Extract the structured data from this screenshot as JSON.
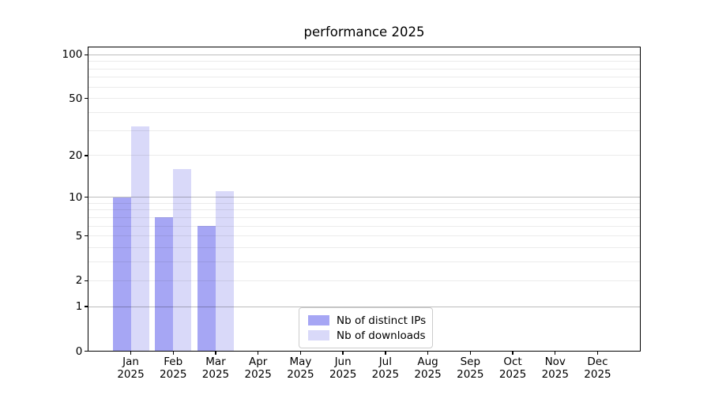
{
  "chart_data": {
    "type": "bar",
    "title": "performance 2025",
    "categories": [
      "Jan",
      "Feb",
      "Mar",
      "Apr",
      "May",
      "Jun",
      "Jul",
      "Aug",
      "Sep",
      "Oct",
      "Nov",
      "Dec"
    ],
    "x_tick_year": "2025",
    "series": [
      {
        "name": "Nb of distinct IPs",
        "color": "#a6a6f4",
        "values": [
          10,
          7,
          6,
          0,
          0,
          0,
          0,
          0,
          0,
          0,
          0,
          0
        ]
      },
      {
        "name": "Nb of downloads",
        "color": "#d9d9f9",
        "values": [
          32,
          16,
          11,
          0,
          0,
          0,
          0,
          0,
          0,
          0,
          0,
          0
        ]
      }
    ],
    "xlabel": "",
    "ylabel": "",
    "y_axis": {
      "scale": "log1p",
      "tick_values": [
        0,
        1,
        2,
        5,
        10,
        20,
        50,
        100
      ],
      "tick_labels": [
        "0",
        "1",
        "2",
        "5",
        "10",
        "20",
        "50",
        "100"
      ],
      "ylim": [
        0,
        112.9
      ],
      "grid_major_values": [
        1,
        10,
        100
      ],
      "grid_minor_values": [
        2,
        3,
        4,
        5,
        6,
        7,
        8,
        9,
        20,
        30,
        40,
        50,
        60,
        70,
        80,
        90
      ]
    },
    "legend_position": "lower center",
    "grid": "on",
    "colors": {
      "bar_distinct_ips": "#a6a6f4",
      "bar_downloads": "#d9d9f9",
      "grid_major": "rgba(0,0,0,0.26)",
      "grid_minor": "rgba(0,0,0,0.08)",
      "spine": "#000000",
      "text": "#000000",
      "legend_border": "#cccccc"
    }
  }
}
